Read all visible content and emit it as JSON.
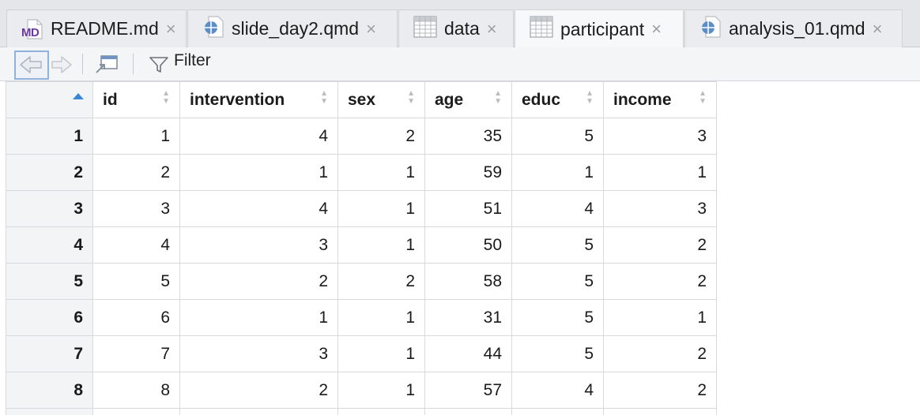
{
  "tabs": [
    {
      "label": "README.md",
      "icon": "markdown-file-icon",
      "active": false
    },
    {
      "label": "slide_day2.qmd",
      "icon": "quarto-file-icon",
      "active": false
    },
    {
      "label": "data",
      "icon": "data-grid-icon",
      "active": false
    },
    {
      "label": "participant",
      "icon": "data-grid-icon",
      "active": true
    },
    {
      "label": "analysis_01.qmd",
      "icon": "quarto-file-icon",
      "active": false
    }
  ],
  "md_icon_text": "MD",
  "close_glyph": "×",
  "toolbar": {
    "filter_label": "Filter"
  },
  "table": {
    "columns": [
      "id",
      "intervention",
      "sex",
      "age",
      "educ",
      "income"
    ],
    "rows": [
      {
        "n": "1",
        "cells": [
          "1",
          "4",
          "2",
          "35",
          "5",
          "3"
        ]
      },
      {
        "n": "2",
        "cells": [
          "2",
          "1",
          "1",
          "59",
          "1",
          "1"
        ]
      },
      {
        "n": "3",
        "cells": [
          "3",
          "4",
          "1",
          "51",
          "4",
          "3"
        ]
      },
      {
        "n": "4",
        "cells": [
          "4",
          "3",
          "1",
          "50",
          "5",
          "2"
        ]
      },
      {
        "n": "5",
        "cells": [
          "5",
          "2",
          "2",
          "58",
          "5",
          "2"
        ]
      },
      {
        "n": "6",
        "cells": [
          "6",
          "1",
          "1",
          "31",
          "5",
          "1"
        ]
      },
      {
        "n": "7",
        "cells": [
          "7",
          "3",
          "1",
          "44",
          "5",
          "2"
        ]
      },
      {
        "n": "8",
        "cells": [
          "8",
          "2",
          "1",
          "57",
          "4",
          "2"
        ]
      }
    ]
  },
  "colors": {
    "sort_active": "#3a86d6",
    "quarto_blue": "#5b8ec9",
    "md_purple": "#6b3aa0"
  }
}
